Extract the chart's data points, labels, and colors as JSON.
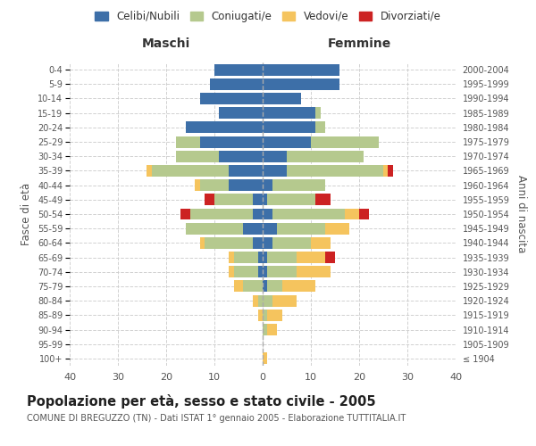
{
  "age_groups": [
    "100+",
    "95-99",
    "90-94",
    "85-89",
    "80-84",
    "75-79",
    "70-74",
    "65-69",
    "60-64",
    "55-59",
    "50-54",
    "45-49",
    "40-44",
    "35-39",
    "30-34",
    "25-29",
    "20-24",
    "15-19",
    "10-14",
    "5-9",
    "0-4"
  ],
  "birth_years": [
    "≤ 1904",
    "1905-1909",
    "1910-1914",
    "1915-1919",
    "1920-1924",
    "1925-1929",
    "1930-1934",
    "1935-1939",
    "1940-1944",
    "1945-1949",
    "1950-1954",
    "1955-1959",
    "1960-1964",
    "1965-1969",
    "1970-1974",
    "1975-1979",
    "1980-1984",
    "1985-1989",
    "1990-1994",
    "1995-1999",
    "2000-2004"
  ],
  "maschi": {
    "celibi": [
      0,
      0,
      0,
      0,
      0,
      0,
      1,
      1,
      2,
      4,
      2,
      2,
      7,
      7,
      9,
      13,
      16,
      9,
      13,
      11,
      10
    ],
    "coniugati": [
      0,
      0,
      0,
      0,
      1,
      4,
      5,
      5,
      10,
      12,
      13,
      8,
      6,
      16,
      9,
      5,
      0,
      0,
      0,
      0,
      0
    ],
    "vedovi": [
      0,
      0,
      0,
      1,
      1,
      2,
      1,
      1,
      1,
      0,
      0,
      0,
      1,
      1,
      0,
      0,
      0,
      0,
      0,
      0,
      0
    ],
    "divorziati": [
      0,
      0,
      0,
      0,
      0,
      0,
      0,
      0,
      0,
      0,
      2,
      2,
      0,
      0,
      0,
      0,
      0,
      0,
      0,
      0,
      0
    ]
  },
  "femmine": {
    "nubili": [
      0,
      0,
      0,
      0,
      0,
      1,
      1,
      1,
      2,
      3,
      2,
      1,
      2,
      5,
      5,
      10,
      11,
      11,
      8,
      16,
      16
    ],
    "coniugate": [
      0,
      0,
      1,
      1,
      2,
      3,
      6,
      6,
      8,
      10,
      15,
      10,
      11,
      20,
      16,
      14,
      2,
      1,
      0,
      0,
      0
    ],
    "vedove": [
      1,
      0,
      2,
      3,
      5,
      7,
      7,
      6,
      4,
      5,
      3,
      0,
      0,
      1,
      0,
      0,
      0,
      0,
      0,
      0,
      0
    ],
    "divorziate": [
      0,
      0,
      0,
      0,
      0,
      0,
      0,
      2,
      0,
      0,
      2,
      3,
      0,
      1,
      0,
      0,
      0,
      0,
      0,
      0,
      0
    ]
  },
  "colors": {
    "celibi_nubili": "#3d6fa8",
    "coniugati": "#b5c98e",
    "vedovi": "#f5c45e",
    "divorziati": "#cc2222"
  },
  "xlim": 40,
  "title": "Popolazione per età, sesso e stato civile - 2005",
  "subtitle": "COMUNE DI BREGUZZO (TN) - Dati ISTAT 1° gennaio 2005 - Elaborazione TUTTITALIA.IT",
  "ylabel_left": "Fasce di età",
  "ylabel_right": "Anni di nascita",
  "xlabel_maschi": "Maschi",
  "xlabel_femmine": "Femmine",
  "legend_labels": [
    "Celibi/Nubili",
    "Coniugati/e",
    "Vedovi/e",
    "Divorziati/e"
  ],
  "bg_color": "#ffffff",
  "grid_color": "#cccccc"
}
